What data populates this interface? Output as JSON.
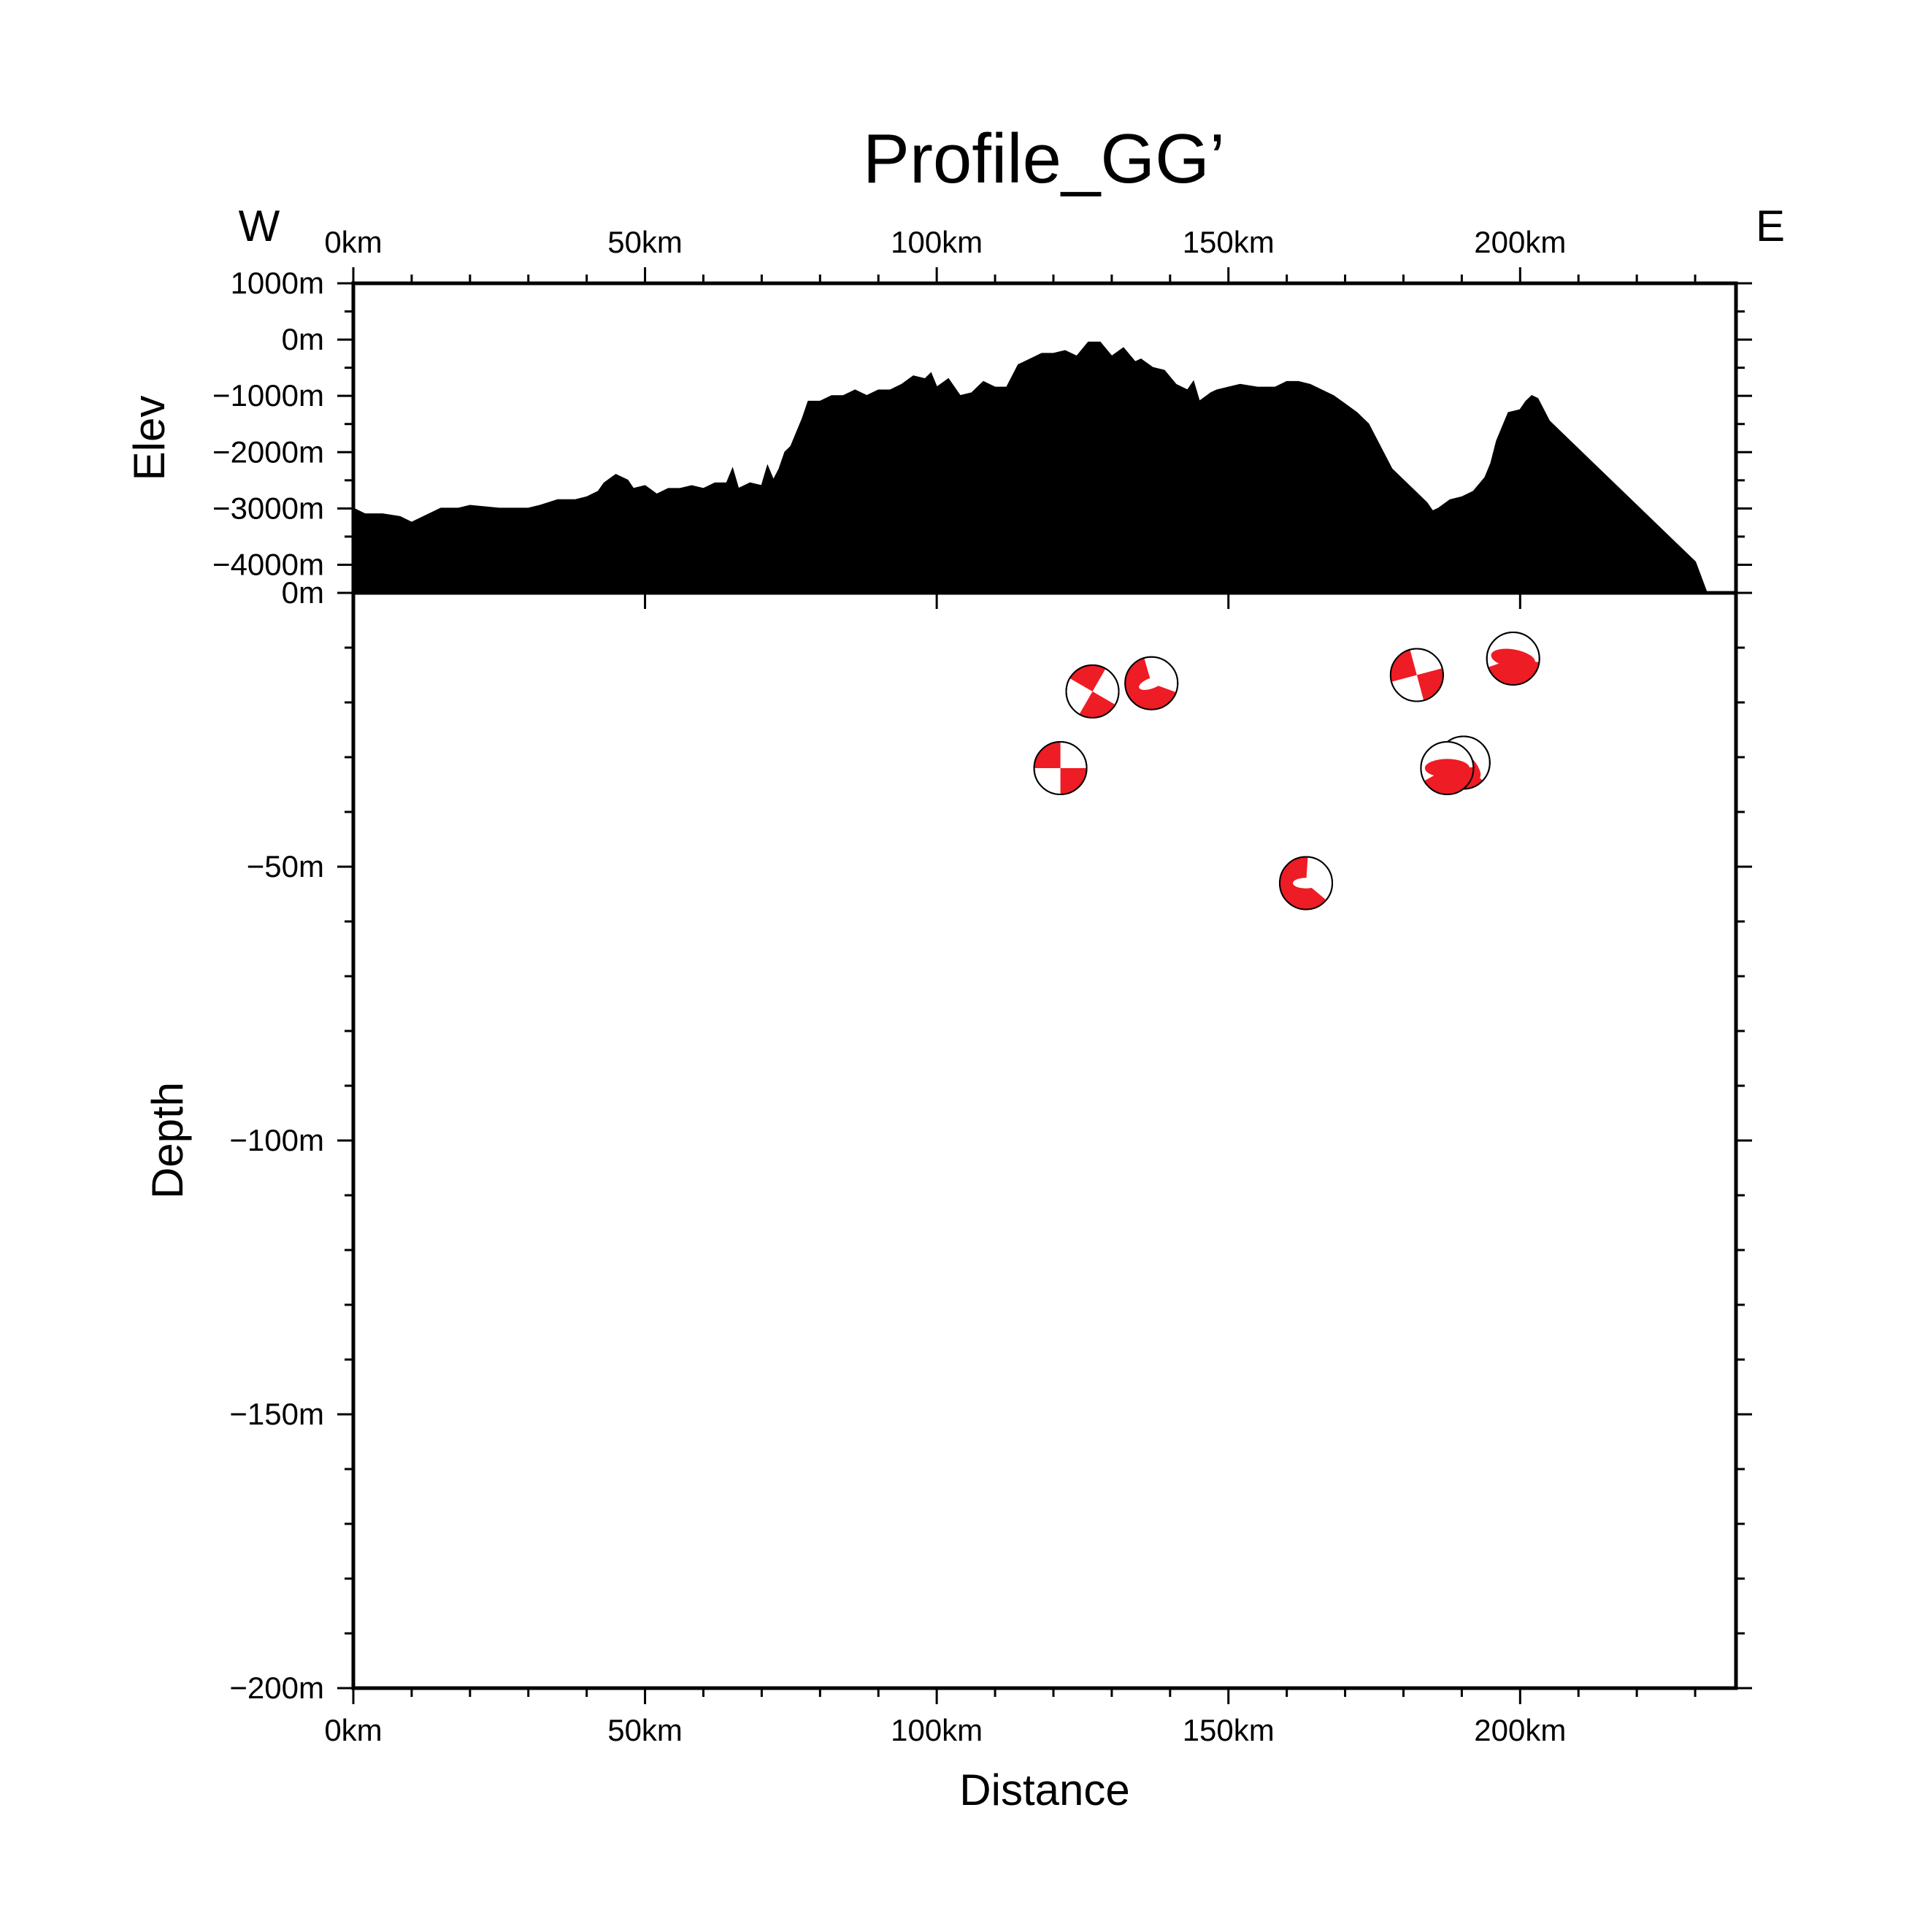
{
  "chart_data": [
    {
      "type": "area",
      "panel": "elevation",
      "title": "Profile_GG’",
      "ylabel": "Elev",
      "west_label": "W",
      "east_label": "E",
      "xlim": [
        0,
        237
      ],
      "ylim": [
        -4500,
        1000
      ],
      "x_ticks": [
        0,
        50,
        100,
        150,
        200
      ],
      "x_tick_labels": [
        "0km",
        "50km",
        "100km",
        "150km",
        "200km"
      ],
      "y_ticks": [
        1000,
        0,
        -1000,
        -2000,
        -3000,
        -4000,
        -4500
      ],
      "y_tick_labels": [
        "1000m",
        "0m",
        "−1000m",
        "−2000m",
        "−3000m",
        "−4000m",
        "0m"
      ],
      "series": [
        {
          "x": [
            0,
            2,
            5,
            8,
            10,
            12,
            15,
            18,
            20,
            25,
            30,
            32,
            35,
            38,
            40,
            42,
            43,
            45,
            47,
            48,
            50,
            52,
            54,
            56,
            58,
            60,
            62,
            64,
            65,
            66,
            68,
            70,
            71,
            72,
            73,
            74,
            75,
            77,
            78,
            80,
            82,
            84,
            86,
            88,
            90,
            92,
            94,
            96,
            98,
            99,
            100,
            102,
            104,
            106,
            108,
            110,
            112,
            114,
            116,
            118,
            120,
            122,
            124,
            126,
            128,
            130,
            132,
            134,
            135,
            137,
            139,
            141,
            143,
            144,
            145,
            147,
            148,
            150,
            152,
            155,
            158,
            160,
            162,
            164,
            166,
            168,
            170,
            172,
            174,
            176,
            178,
            180,
            182,
            184,
            185,
            186,
            188,
            190,
            192,
            194,
            195,
            196,
            198,
            200,
            201,
            202,
            203,
            205,
            210,
            215,
            220,
            225,
            230,
            232,
            237
          ],
          "y": [
            -3000,
            -3100,
            -3100,
            -3150,
            -3250,
            -3150,
            -3000,
            -3000,
            -2950,
            -3000,
            -3000,
            -2950,
            -2850,
            -2850,
            -2800,
            -2700,
            -2550,
            -2400,
            -2500,
            -2650,
            -2600,
            -2750,
            -2650,
            -2650,
            -2600,
            -2650,
            -2550,
            -2550,
            -2300,
            -2650,
            -2550,
            -2600,
            -2250,
            -2500,
            -2300,
            -2000,
            -1900,
            -1400,
            -1100,
            -1100,
            -1000,
            -1000,
            -900,
            -1000,
            -900,
            -900,
            -800,
            -650,
            -700,
            -600,
            -850,
            -700,
            -1000,
            -950,
            -750,
            -850,
            -850,
            -450,
            -350,
            -250,
            -250,
            -200,
            -300,
            -50,
            -50,
            -300,
            -150,
            -400,
            -350,
            -500,
            -550,
            -800,
            -900,
            -750,
            -1100,
            -950,
            -900,
            -850,
            -800,
            -850,
            -850,
            -750,
            -750,
            -800,
            -900,
            -1000,
            -1150,
            -1300,
            -1500,
            -1900,
            -2300,
            -2500,
            -2700,
            -2900,
            -3050,
            -3000,
            -2850,
            -2800,
            -2700,
            -2450,
            -2200,
            -1800,
            -1300,
            -1250,
            -1100,
            -1000,
            -1050,
            -1450,
            -1950,
            -2450,
            -2950,
            -3450,
            -3950,
            -4500,
            -4500
          ]
        }
      ]
    },
    {
      "type": "scatter",
      "panel": "depth",
      "xlabel": "Distance",
      "ylabel": "Depth",
      "xlim": [
        0,
        237
      ],
      "ylim": [
        -200,
        0
      ],
      "x_ticks": [
        0,
        50,
        100,
        150,
        200
      ],
      "x_tick_labels": [
        "0km",
        "50km",
        "100km",
        "150km",
        "200km"
      ],
      "y_ticks": [
        -50,
        -100,
        -150,
        -200
      ],
      "y_tick_labels": [
        "−50m",
        "−100m",
        "−150m",
        "−200m"
      ],
      "marker_color": "#ee1c25",
      "points": [
        {
          "x": 126.7,
          "y": -18,
          "strike_deg": 30,
          "style": "strike-slip"
        },
        {
          "x": 136.8,
          "y": -16.5,
          "strike_deg": 20,
          "style": "oblique"
        },
        {
          "x": 121.2,
          "y": -32,
          "strike_deg": 0,
          "style": "strike-slip"
        },
        {
          "x": 182.3,
          "y": -15,
          "strike_deg": -15,
          "style": "strike-slip"
        },
        {
          "x": 198.8,
          "y": -12,
          "strike_deg": -10,
          "style": "thrust"
        },
        {
          "x": 190.3,
          "y": -31,
          "strike_deg": 25,
          "style": "thrust"
        },
        {
          "x": 187.5,
          "y": -32,
          "strike_deg": -20,
          "style": "thrust"
        },
        {
          "x": 163.3,
          "y": -53,
          "strike_deg": 40,
          "style": "oblique"
        }
      ]
    }
  ]
}
